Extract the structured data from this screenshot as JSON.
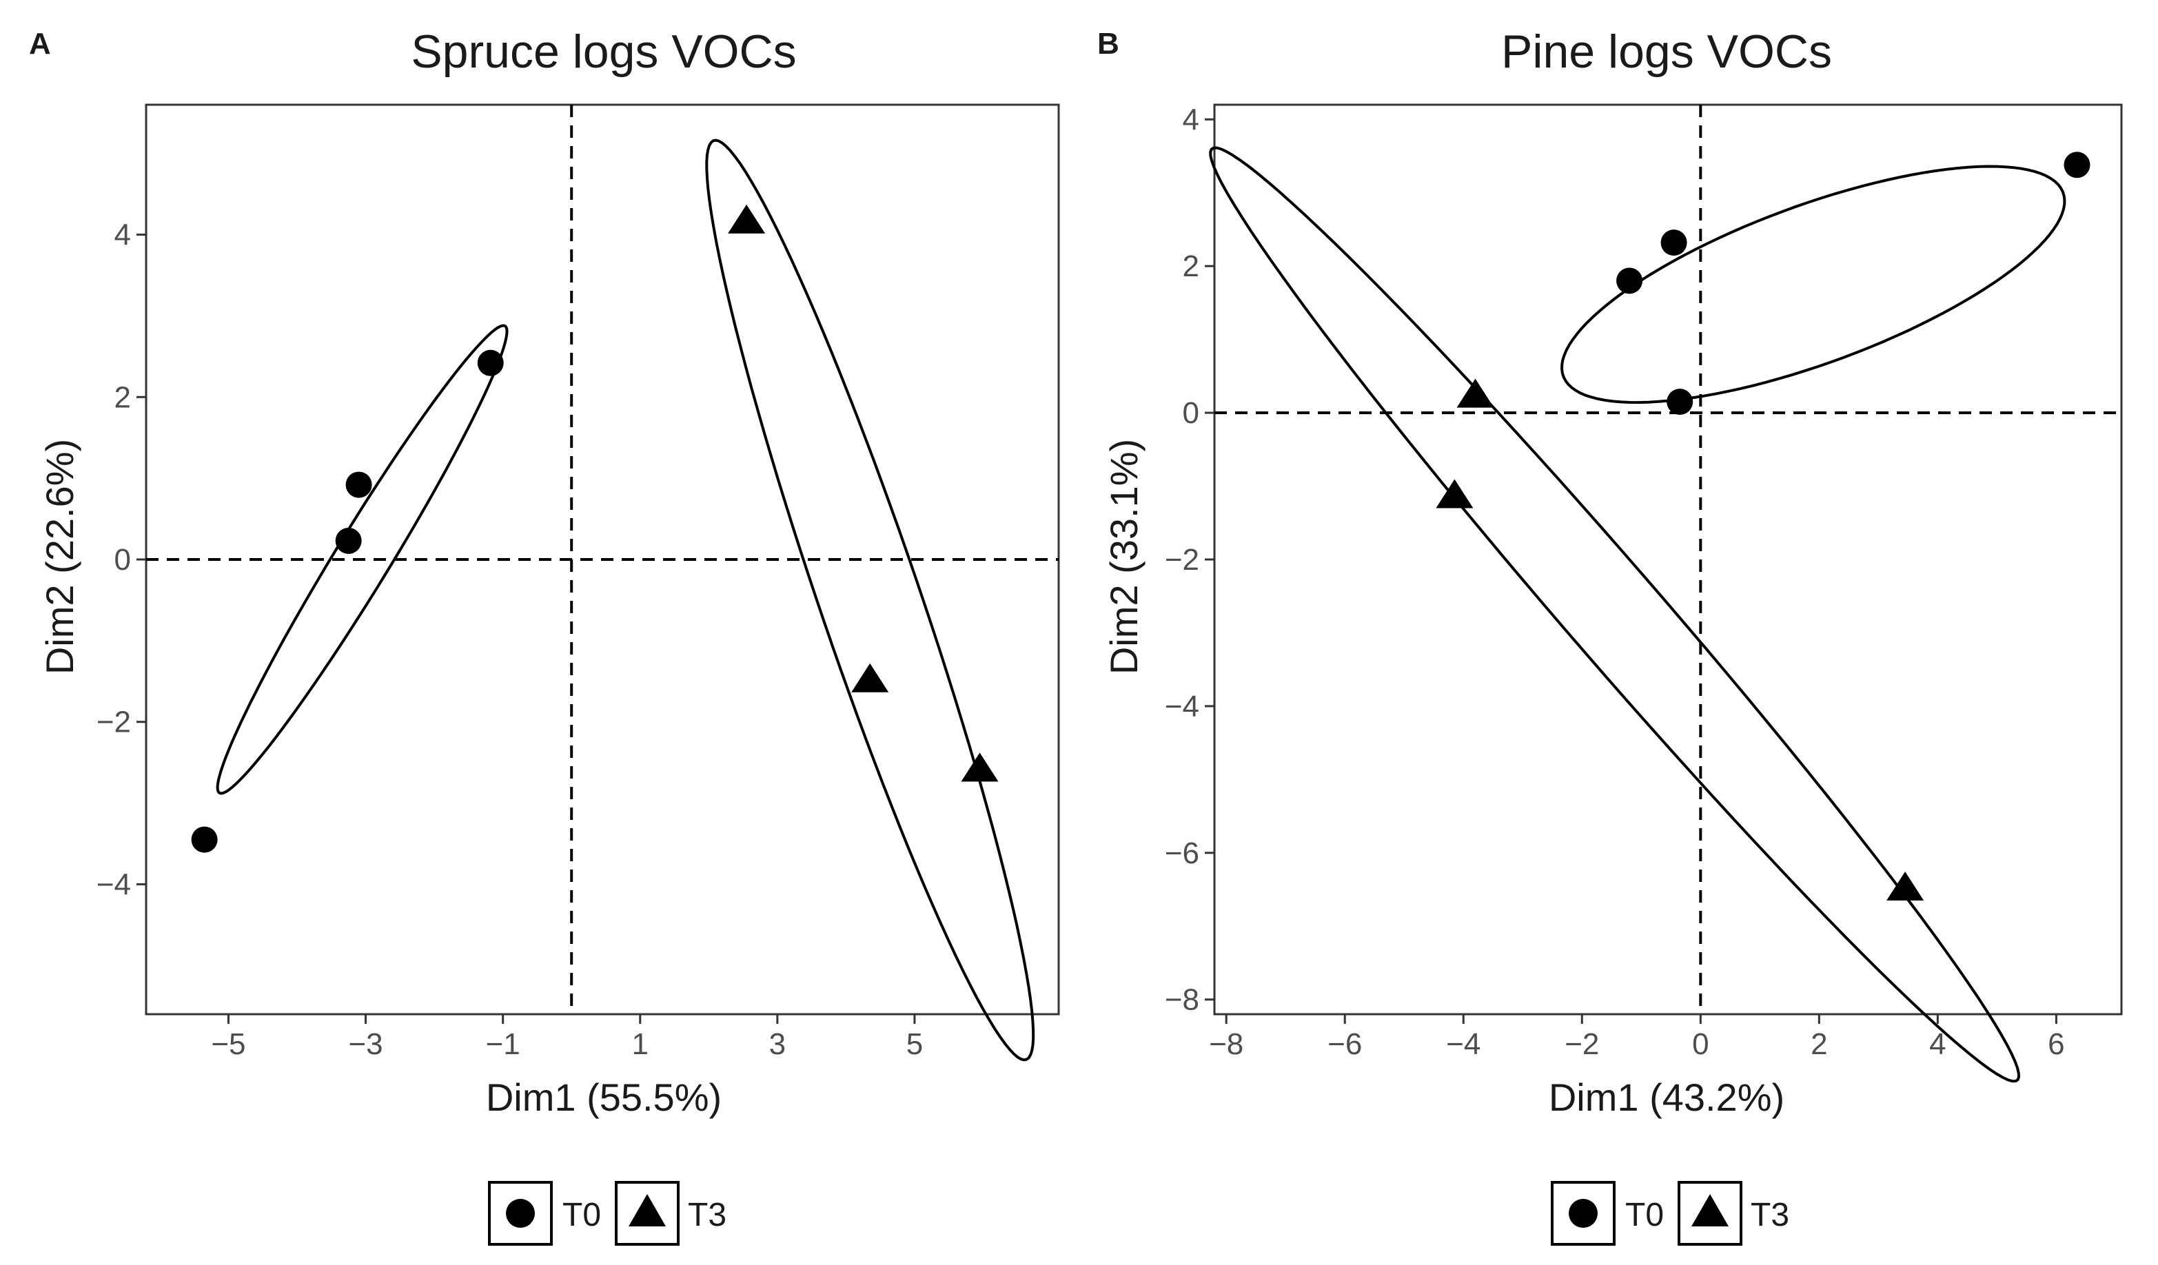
{
  "chart_data": [
    {
      "type": "scatter",
      "panel": "A",
      "title": "Spruce logs VOCs",
      "xlabel": "Dim1 (55.5%)",
      "ylabel": "Dim2 (22.6%)",
      "xlim": [
        -6.2,
        7.1
      ],
      "ylim": [
        -5.6,
        5.6
      ],
      "xticks": [
        -5,
        -3,
        -1,
        1,
        3,
        5
      ],
      "yticks": [
        -4,
        -2,
        0,
        2,
        4
      ],
      "xtick_labels": [
        "−5",
        "−3",
        "−1",
        "1",
        "3",
        "5"
      ],
      "ytick_labels": [
        "−4",
        "−2",
        "0",
        "2",
        "4"
      ],
      "reference_lines": {
        "x": 0,
        "y": 0
      },
      "series": [
        {
          "name": "T0",
          "marker": "circle",
          "points": [
            [
              -5.35,
              -3.45
            ],
            [
              -3.25,
              0.23
            ],
            [
              -3.1,
              0.92
            ],
            [
              -1.18,
              2.42
            ]
          ]
        },
        {
          "name": "T3",
          "marker": "triangle",
          "points": [
            [
              2.55,
              4.15
            ],
            [
              4.35,
              -1.5
            ],
            [
              5.95,
              -2.6
            ]
          ]
        }
      ],
      "ellipses": [
        {
          "group": "T0",
          "center": [
            -3.05,
            0.0
          ],
          "semi_major": 3.55,
          "semi_minor": 0.38,
          "angle_deg": 54
        },
        {
          "group": "T3",
          "center": [
            4.35,
            -0.5
          ],
          "semi_major": 6.1,
          "semi_minor": 0.72,
          "angle_deg": -68
        }
      ],
      "legend": {
        "position": "bottom",
        "entries": [
          "T0",
          "T3"
        ]
      }
    },
    {
      "type": "scatter",
      "panel": "B",
      "title": "Pine logs VOCs",
      "xlabel": "Dim1 (43.2%)",
      "ylabel": "Dim2 (33.1%)",
      "xlim": [
        -8.2,
        7.1
      ],
      "ylim": [
        -8.2,
        4.2
      ],
      "xticks": [
        -8,
        -6,
        -4,
        -2,
        0,
        2,
        4,
        6
      ],
      "yticks": [
        -8,
        -6,
        -4,
        -2,
        0,
        2,
        4
      ],
      "xtick_labels": [
        "−8",
        "−6",
        "−4",
        "−2",
        "0",
        "2",
        "4",
        "6"
      ],
      "ytick_labels": [
        "−8",
        "−6",
        "−4",
        "−2",
        "0",
        "2",
        "4"
      ],
      "reference_lines": {
        "x": 0,
        "y": 0
      },
      "series": [
        {
          "name": "T0",
          "marker": "circle",
          "points": [
            [
              -1.2,
              1.8
            ],
            [
              -0.45,
              2.32
            ],
            [
              -0.35,
              0.15
            ],
            [
              6.35,
              3.38
            ]
          ]
        },
        {
          "name": "T3",
          "marker": "triangle",
          "points": [
            [
              -3.8,
              0.22
            ],
            [
              -4.15,
              -1.15
            ],
            [
              3.45,
              -6.5
            ]
          ]
        }
      ],
      "ellipses": [
        {
          "group": "T0",
          "center": [
            1.9,
            1.75
          ],
          "semi_major": 4.4,
          "semi_minor": 1.1,
          "angle_deg": 16
        },
        {
          "group": "T3",
          "center": [
            -1.45,
            -2.75
          ],
          "semi_major": 9.3,
          "semi_minor": 0.72,
          "angle_deg": -43
        }
      ],
      "legend": {
        "position": "bottom",
        "entries": [
          "T0",
          "T3"
        ]
      }
    }
  ]
}
